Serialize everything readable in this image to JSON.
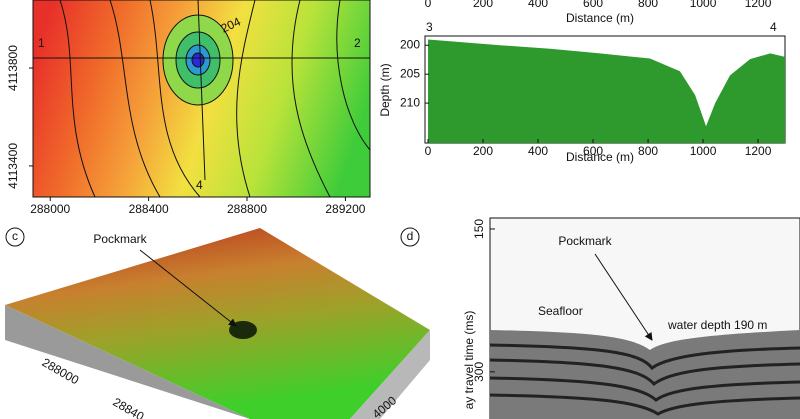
{
  "chart_data": [
    {
      "type": "map",
      "xlim": [
        287930,
        289300
      ],
      "ylim": [
        4113273,
        4114078
      ],
      "xticks": [
        288000,
        288400,
        288800,
        289200
      ],
      "yticks": [
        4113800,
        4113400
      ],
      "annotations": [
        "1",
        "2",
        "4",
        "204"
      ]
    },
    {
      "type": "axis",
      "xlabel": "Distance (m)",
      "xlim": [
        -11,
        1298
      ],
      "xticks": [
        0,
        200,
        400,
        600,
        800,
        1000,
        1200
      ]
    },
    {
      "type": "area",
      "xlabel": "Distance (m)",
      "ylabel": "Depth (m)",
      "color": "#2e9a2e",
      "x": [
        0,
        80,
        262,
        444,
        625,
        807,
        916,
        971,
        1011,
        1044,
        1098,
        1171,
        1244,
        1298
      ],
      "values": [
        199.0,
        199.3,
        200.0,
        200.6,
        201.4,
        202.3,
        204.5,
        208.6,
        214.0,
        210.0,
        205.2,
        202.4,
        201.4,
        202.0
      ],
      "xlim": [
        -11,
        1298
      ],
      "ylim": [
        198.4,
        216.9
      ],
      "xticks": [
        0,
        200,
        400,
        600,
        800,
        1000,
        1200
      ],
      "yticks": [
        200,
        205,
        210
      ],
      "annotations": [
        "3",
        "4"
      ]
    },
    {
      "type": "seismic",
      "ylabel": "ay travel time (ms)",
      "ylim": [
        138.5,
        349.5
      ],
      "yticks": [
        150,
        300
      ]
    }
  ],
  "panel_c": {
    "letter": "c",
    "pockmark": "Pockmark",
    "axis_labels": [
      "288000",
      "28840",
      "4000"
    ]
  },
  "panel_d": {
    "letter": "d",
    "pockmark": "Pockmark",
    "seafloor": "Seafloor",
    "water_depth": "water depth 190 m"
  }
}
